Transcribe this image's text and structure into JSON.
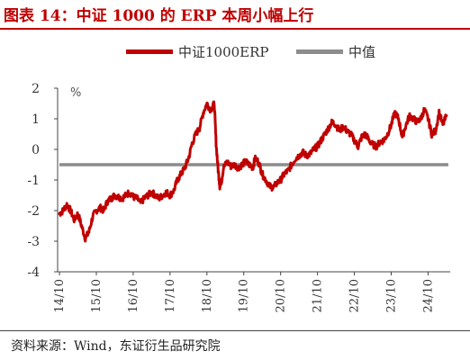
{
  "title": "图表 14：中证 1000 的 ERP 本周小幅上行",
  "source": "资料来源：Wind，东证衍生品研究院",
  "chart_data": {
    "type": "line",
    "ylabel": "%",
    "ylim": [
      -4,
      2
    ],
    "yticks": [
      2,
      1,
      0,
      -1,
      -2,
      -3,
      -4
    ],
    "xlim": [
      2014.7,
      2025.35
    ],
    "xticks": [
      {
        "label": "14/10",
        "x": 2014.75
      },
      {
        "label": "15/10",
        "x": 2015.75
      },
      {
        "label": "16/10",
        "x": 2016.75
      },
      {
        "label": "17/10",
        "x": 2017.75
      },
      {
        "label": "18/10",
        "x": 2018.75
      },
      {
        "label": "19/10",
        "x": 2019.75
      },
      {
        "label": "20/10",
        "x": 2020.75
      },
      {
        "label": "21/10",
        "x": 2021.75
      },
      {
        "label": "22/10",
        "x": 2022.75
      },
      {
        "label": "23/10",
        "x": 2023.75
      },
      {
        "label": "24/10",
        "x": 2024.75
      }
    ],
    "grid": false,
    "legend_position": "top",
    "series": [
      {
        "name": "中证1000ERP",
        "color": "#c00000",
        "points": [
          [
            2014.75,
            -2.1
          ],
          [
            2014.85,
            -2.0
          ],
          [
            2014.95,
            -1.8
          ],
          [
            2015.05,
            -2.0
          ],
          [
            2015.15,
            -2.3
          ],
          [
            2015.25,
            -2.1
          ],
          [
            2015.35,
            -2.5
          ],
          [
            2015.45,
            -2.9
          ],
          [
            2015.55,
            -2.7
          ],
          [
            2015.65,
            -2.2
          ],
          [
            2015.75,
            -2.0
          ],
          [
            2015.85,
            -1.9
          ],
          [
            2015.95,
            -2.0
          ],
          [
            2016.05,
            -1.7
          ],
          [
            2016.15,
            -1.6
          ],
          [
            2016.25,
            -1.5
          ],
          [
            2016.35,
            -1.55
          ],
          [
            2016.45,
            -1.6
          ],
          [
            2016.55,
            -1.5
          ],
          [
            2016.65,
            -1.4
          ],
          [
            2016.75,
            -1.55
          ],
          [
            2016.85,
            -1.6
          ],
          [
            2016.95,
            -1.75
          ],
          [
            2017.05,
            -1.6
          ],
          [
            2017.15,
            -1.5
          ],
          [
            2017.25,
            -1.4
          ],
          [
            2017.35,
            -1.5
          ],
          [
            2017.45,
            -1.6
          ],
          [
            2017.55,
            -1.5
          ],
          [
            2017.65,
            -1.4
          ],
          [
            2017.75,
            -1.5
          ],
          [
            2017.85,
            -1.35
          ],
          [
            2017.95,
            -1.0
          ],
          [
            2018.05,
            -0.8
          ],
          [
            2018.15,
            -0.6
          ],
          [
            2018.25,
            -0.3
          ],
          [
            2018.35,
            0.2
          ],
          [
            2018.45,
            0.5
          ],
          [
            2018.55,
            0.7
          ],
          [
            2018.65,
            1.2
          ],
          [
            2018.75,
            1.5
          ],
          [
            2018.85,
            1.3
          ],
          [
            2018.95,
            1.5
          ],
          [
            2019.0,
            0.2
          ],
          [
            2019.05,
            -0.6
          ],
          [
            2019.1,
            -1.2
          ],
          [
            2019.15,
            -1.0
          ],
          [
            2019.2,
            -0.6
          ],
          [
            2019.3,
            -0.4
          ],
          [
            2019.4,
            -0.55
          ],
          [
            2019.5,
            -0.5
          ],
          [
            2019.6,
            -0.6
          ],
          [
            2019.7,
            -0.5
          ],
          [
            2019.8,
            -0.4
          ],
          [
            2019.9,
            -0.5
          ],
          [
            2020.0,
            -0.6
          ],
          [
            2020.05,
            -0.3
          ],
          [
            2020.15,
            -0.4
          ],
          [
            2020.25,
            -0.8
          ],
          [
            2020.35,
            -1.0
          ],
          [
            2020.45,
            -1.2
          ],
          [
            2020.55,
            -1.25
          ],
          [
            2020.65,
            -1.1
          ],
          [
            2020.75,
            -1.0
          ],
          [
            2020.85,
            -0.8
          ],
          [
            2020.95,
            -0.7
          ],
          [
            2021.05,
            -0.5
          ],
          [
            2021.15,
            -0.3
          ],
          [
            2021.25,
            -0.2
          ],
          [
            2021.35,
            -0.1
          ],
          [
            2021.45,
            -0.2
          ],
          [
            2021.55,
            -0.15
          ],
          [
            2021.65,
            0.0
          ],
          [
            2021.75,
            0.1
          ],
          [
            2021.85,
            0.3
          ],
          [
            2021.95,
            0.5
          ],
          [
            2022.05,
            0.7
          ],
          [
            2022.15,
            0.9
          ],
          [
            2022.25,
            0.8
          ],
          [
            2022.35,
            0.6
          ],
          [
            2022.45,
            0.75
          ],
          [
            2022.55,
            0.6
          ],
          [
            2022.65,
            0.5
          ],
          [
            2022.75,
            0.3
          ],
          [
            2022.85,
            0.1
          ],
          [
            2022.95,
            0.4
          ],
          [
            2023.05,
            0.5
          ],
          [
            2023.15,
            0.3
          ],
          [
            2023.25,
            0.15
          ],
          [
            2023.35,
            0.1
          ],
          [
            2023.45,
            0.25
          ],
          [
            2023.55,
            0.3
          ],
          [
            2023.65,
            0.5
          ],
          [
            2023.75,
            0.8
          ],
          [
            2023.85,
            1.2
          ],
          [
            2023.95,
            1.0
          ],
          [
            2024.05,
            0.4
          ],
          [
            2024.15,
            0.8
          ],
          [
            2024.25,
            1.1
          ],
          [
            2024.35,
            1.0
          ],
          [
            2024.45,
            0.9
          ],
          [
            2024.55,
            1.0
          ],
          [
            2024.65,
            1.3
          ],
          [
            2024.75,
            1.0
          ],
          [
            2024.85,
            0.5
          ],
          [
            2024.95,
            0.6
          ],
          [
            2025.05,
            1.2
          ],
          [
            2025.15,
            0.8
          ],
          [
            2025.25,
            1.1
          ]
        ]
      },
      {
        "name": "中值",
        "color": "#8c8c8c",
        "points": [
          [
            2014.75,
            -0.5
          ],
          [
            2025.3,
            -0.5
          ]
        ]
      }
    ]
  }
}
